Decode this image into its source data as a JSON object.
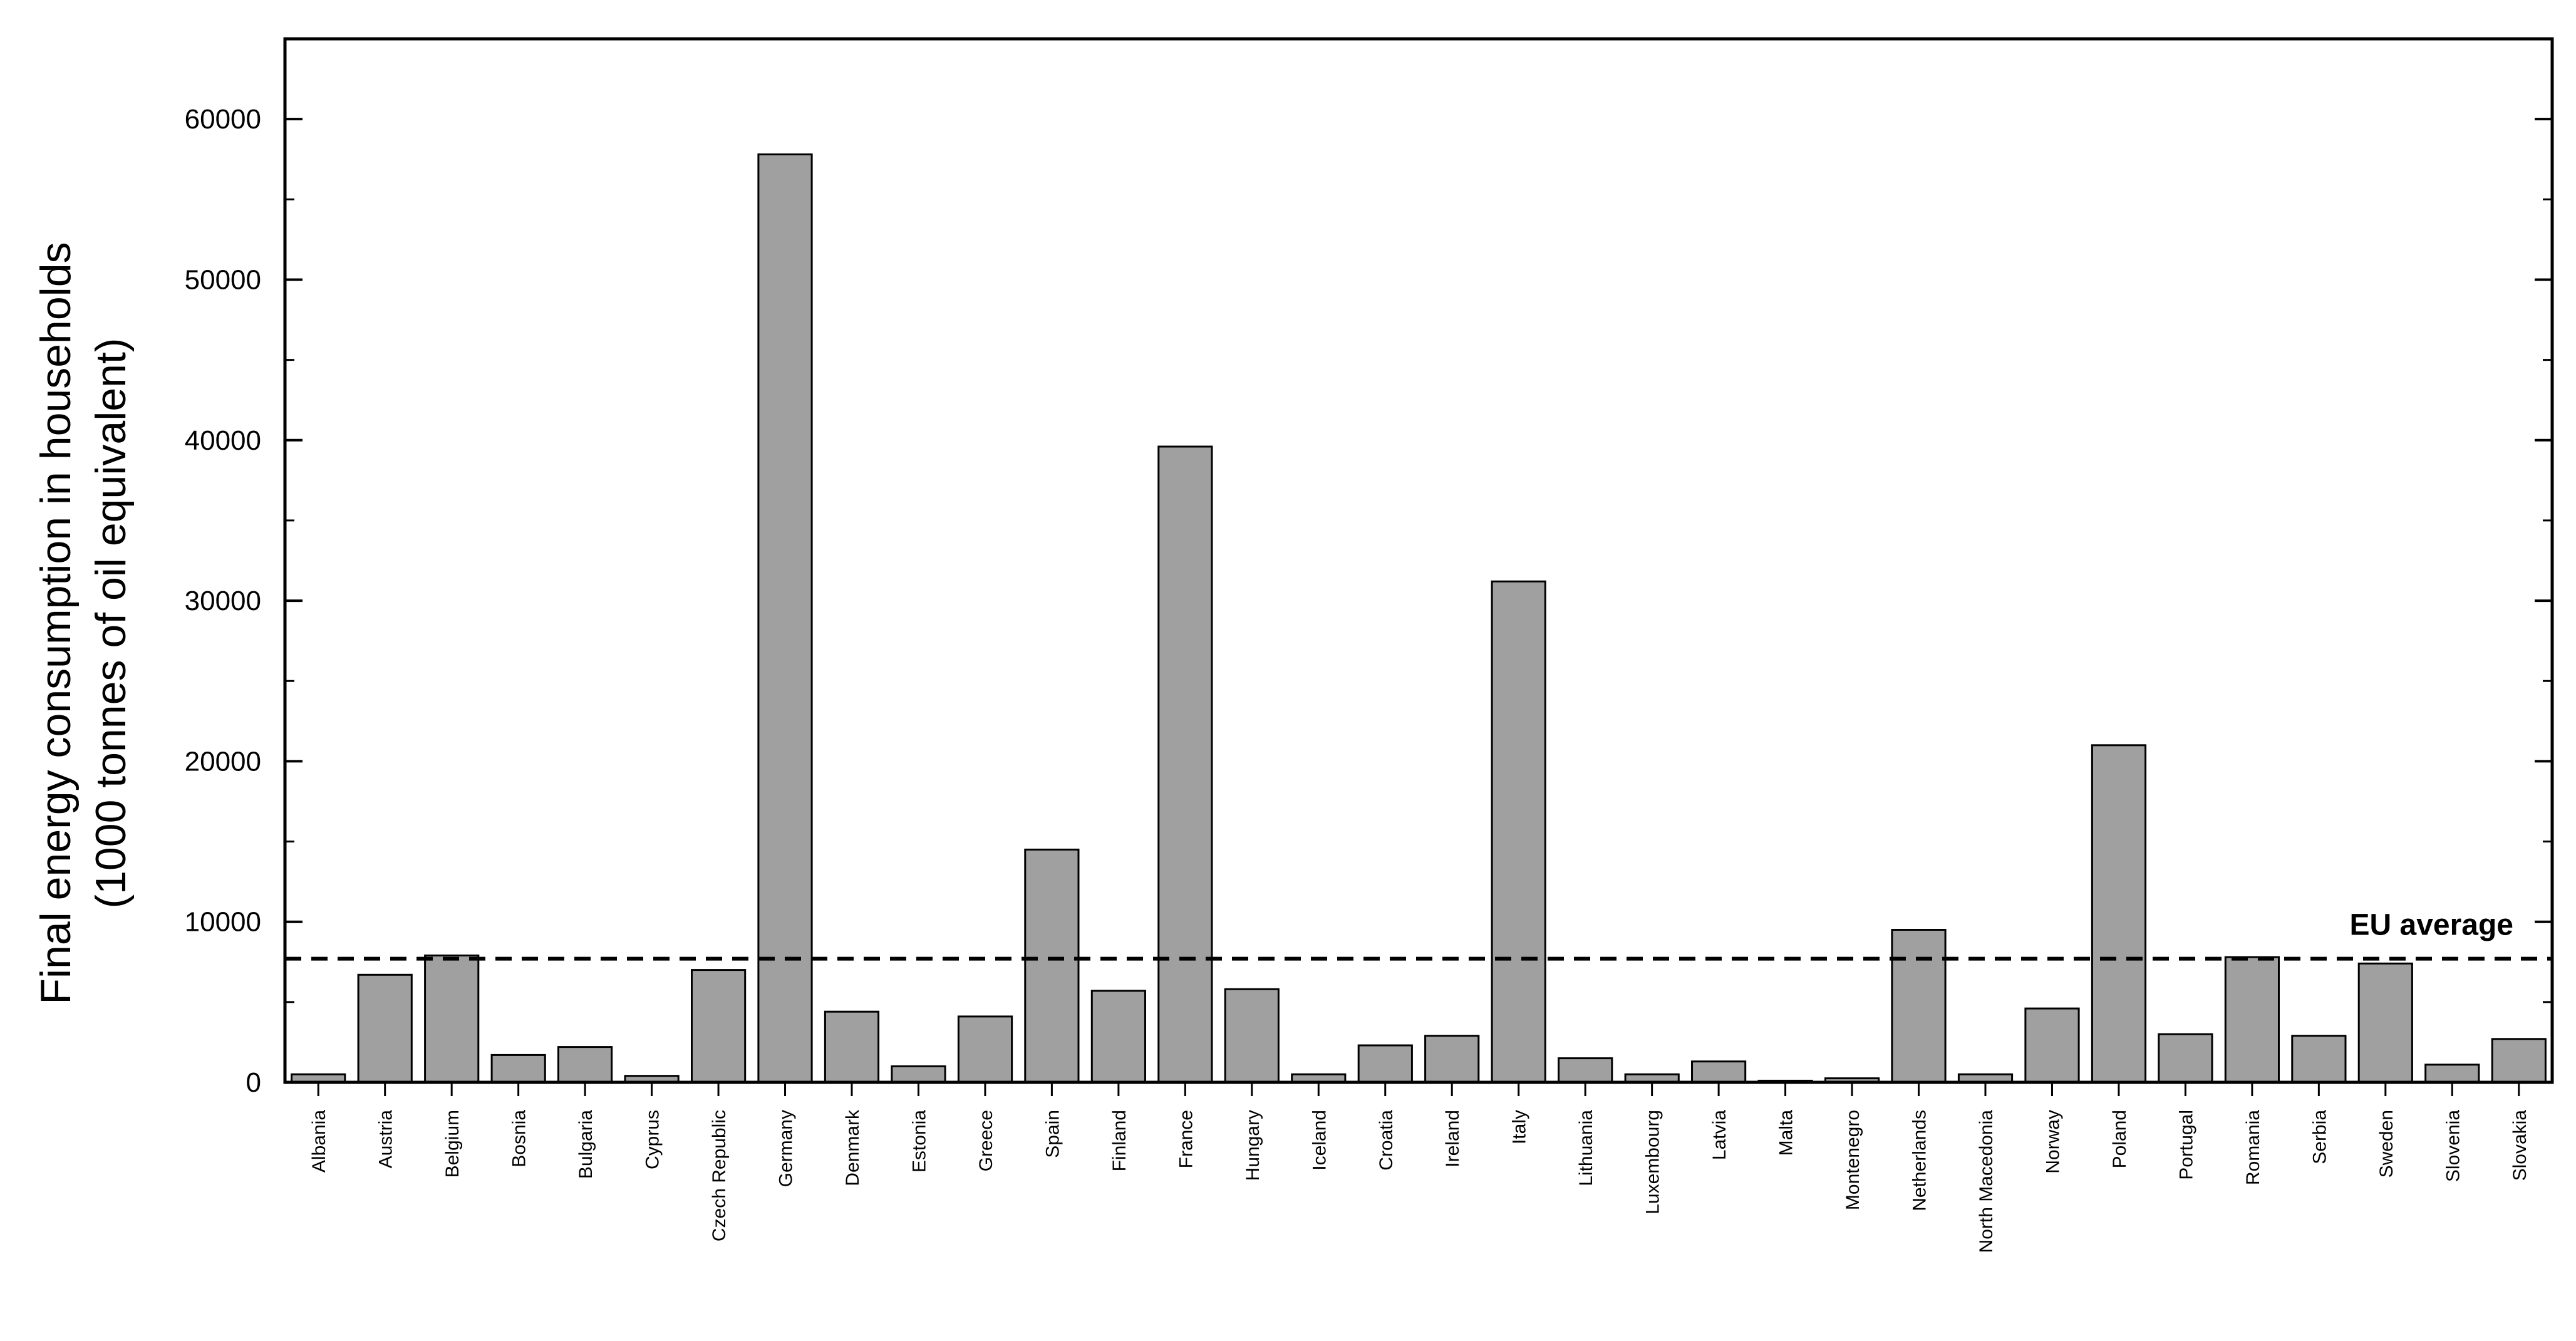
{
  "chart_data": {
    "type": "bar",
    "title": "",
    "xlabel": "",
    "ylabel_line1": "Final energy consumption in households",
    "ylabel_line2": "(1000 tonnes of oil equivalent)",
    "ylim": [
      0,
      65000
    ],
    "yticks": [
      0,
      10000,
      20000,
      30000,
      40000,
      50000,
      60000
    ],
    "ytick_labels": [
      "0",
      "10000",
      "20000",
      "30000",
      "40000",
      "50000",
      "60000"
    ],
    "grid": false,
    "legend": "none",
    "bar_color": "#a0a0a0",
    "bar_edge_color": "#000000",
    "categories": [
      "Albania",
      "Austria",
      "Belgium",
      "Bosnia",
      "Bulgaria",
      "Cyprus",
      "Czech Republic",
      "Germany",
      "Denmark",
      "Estonia",
      "Greece",
      "Spain",
      "Finland",
      "France",
      "Hungary",
      "Iceland",
      "Croatia",
      "Ireland",
      "Italy",
      "Lithuania",
      "Luxembourg",
      "Latvia",
      "Malta",
      "Montenegro",
      "Netherlands",
      "North Macedonia",
      "Norway",
      "Poland",
      "Portugal",
      "Romania",
      "Serbia",
      "Sweden",
      "Slovenia",
      "Slovakia"
    ],
    "values": [
      500,
      6700,
      7900,
      1700,
      2200,
      400,
      7000,
      57800,
      4400,
      1000,
      4100,
      14500,
      5700,
      39600,
      5800,
      500,
      2300,
      2900,
      31200,
      1500,
      500,
      1300,
      100,
      250,
      9500,
      500,
      4600,
      21000,
      3000,
      7800,
      2900,
      7400,
      1100,
      2700
    ],
    "reference_line": {
      "label": "EU average",
      "value": 7700,
      "style": "dashed"
    }
  }
}
